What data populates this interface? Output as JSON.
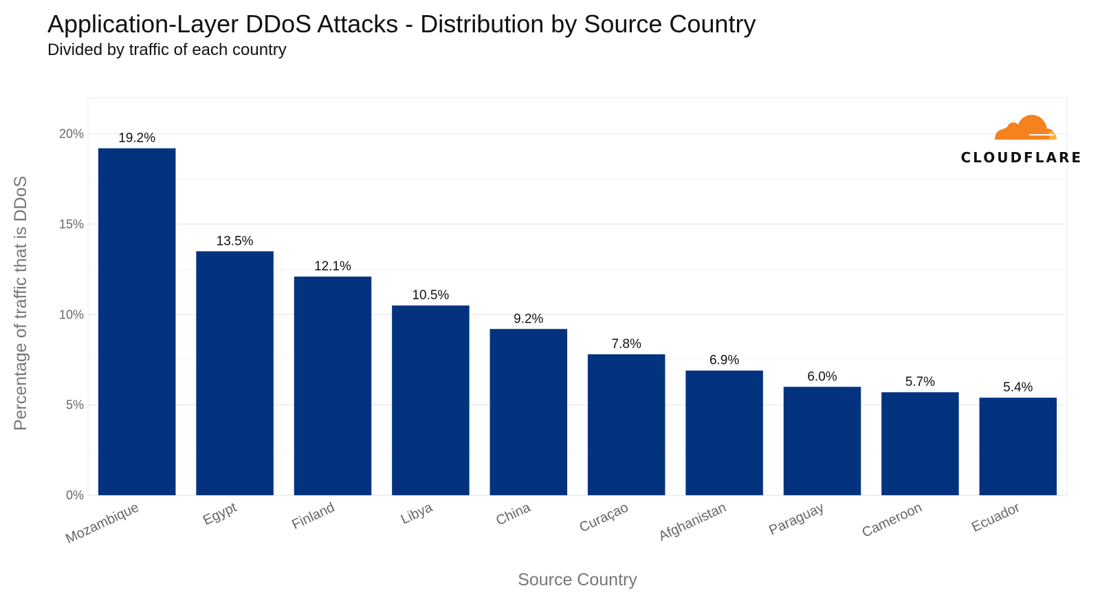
{
  "title": "Application-Layer DDoS Attacks - Distribution by Source Country",
  "subtitle": "Divided by traffic of each country",
  "logo": {
    "text": "CLOUDFLARE",
    "icon": "cloudflare-cloud-icon",
    "color": "#F6821F"
  },
  "chart_data": {
    "type": "bar",
    "categories": [
      "Mozambique",
      "Egypt",
      "Finland",
      "Libya",
      "China",
      "Curaçao",
      "Afghanistan",
      "Paraguay",
      "Cameroon",
      "Ecuador"
    ],
    "values": [
      19.2,
      13.5,
      12.1,
      10.5,
      9.2,
      7.8,
      6.9,
      6.0,
      5.7,
      5.4
    ],
    "value_labels": [
      "19.2%",
      "13.5%",
      "12.1%",
      "10.5%",
      "9.2%",
      "7.8%",
      "6.9%",
      "6.0%",
      "5.7%",
      "5.4%"
    ],
    "xlabel": "Source Country",
    "ylabel": "Percentage of traffic that is DDoS",
    "ylim": [
      0,
      22
    ],
    "yticks": [
      0,
      5,
      10,
      15,
      20
    ],
    "ytick_labels": [
      "0%",
      "5%",
      "10%",
      "15%",
      "20%"
    ],
    "bar_color": "#03337F",
    "grid": true
  }
}
